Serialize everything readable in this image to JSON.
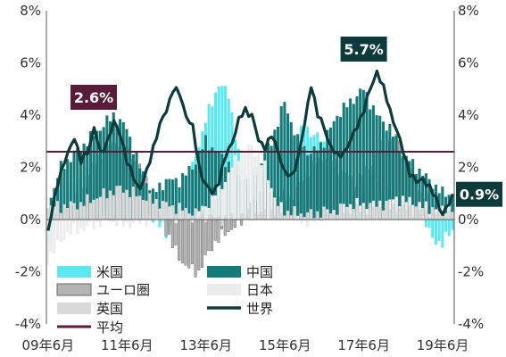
{
  "chart_data": {
    "type": "bar",
    "title": "",
    "xlabel": "",
    "ylabel": "",
    "ylim": [
      -4,
      8
    ],
    "y_ticks": [
      "8%",
      "6%",
      "4%",
      "2%",
      "0%",
      "-2%",
      "-4%"
    ],
    "x_ticks": [
      "09年6月",
      "11年6月",
      "13年6月",
      "15年6月",
      "17年6月",
      "19年6月"
    ],
    "x_range": [
      "2009-06",
      "2019-09"
    ],
    "grid": false,
    "legend_placement": "bottom-left",
    "average": {
      "name": "平均",
      "value": 2.6,
      "label": "2.6%",
      "color": "#5a1a3a"
    },
    "annotations": [
      {
        "text": "5.7%",
        "x": "2017-06",
        "y": 5.7,
        "color": "#0d3b3b"
      },
      {
        "text": "0.9%",
        "x": "2019-09",
        "y": 0.9,
        "color": "#0d3b3b"
      }
    ],
    "series": [
      {
        "name": "米国",
        "type": "bar",
        "color": "#5ce8f0",
        "keyframes": [
          [
            0,
            -1.6
          ],
          [
            4,
            1.2
          ],
          [
            10,
            1.5
          ],
          [
            14,
            2.4
          ],
          [
            18,
            2.8
          ],
          [
            22,
            2.5
          ],
          [
            26,
            1.2
          ],
          [
            30,
            0.3
          ],
          [
            36,
            -0.5
          ],
          [
            40,
            0.5
          ],
          [
            44,
            2.0
          ],
          [
            48,
            3.8
          ],
          [
            52,
            5.2
          ],
          [
            55,
            4.8
          ],
          [
            58,
            2.5
          ],
          [
            62,
            1.0
          ],
          [
            66,
            2.0
          ],
          [
            70,
            2.5
          ],
          [
            74,
            3.0
          ],
          [
            78,
            3.5
          ],
          [
            82,
            3.2
          ],
          [
            86,
            2.5
          ],
          [
            90,
            0.5
          ],
          [
            94,
            1.0
          ],
          [
            98,
            1.5
          ],
          [
            102,
            1.2
          ],
          [
            106,
            1.0
          ],
          [
            110,
            0.6
          ],
          [
            114,
            0.2
          ],
          [
            117,
            -0.8
          ],
          [
            120,
            -0.9
          ],
          [
            123,
            -0.4
          ]
        ]
      },
      {
        "name": "ユーロ圏",
        "type": "bar",
        "color": "#b4b4b4",
        "keyframes": [
          [
            0,
            0.2
          ],
          [
            4,
            0.5
          ],
          [
            10,
            0.8
          ],
          [
            14,
            2.0
          ],
          [
            18,
            2.8
          ],
          [
            22,
            3.0
          ],
          [
            26,
            2.5
          ],
          [
            30,
            1.5
          ],
          [
            34,
            0.2
          ],
          [
            38,
            -1.0
          ],
          [
            42,
            -1.8
          ],
          [
            46,
            -2.0
          ],
          [
            50,
            -1.0
          ],
          [
            54,
            -0.5
          ],
          [
            58,
            -0.2
          ],
          [
            62,
            0.5
          ],
          [
            66,
            1.2
          ],
          [
            70,
            1.0
          ],
          [
            74,
            0.8
          ],
          [
            78,
            1.5
          ],
          [
            82,
            2.2
          ],
          [
            86,
            2.5
          ],
          [
            90,
            1.8
          ],
          [
            94,
            1.5
          ],
          [
            98,
            2.0
          ],
          [
            102,
            2.8
          ],
          [
            106,
            3.2
          ],
          [
            110,
            2.0
          ],
          [
            114,
            1.0
          ],
          [
            118,
            0.5
          ],
          [
            123,
            0.3
          ]
        ]
      },
      {
        "name": "英国",
        "type": "bar",
        "color": "#d9d9d9",
        "keyframes": [
          [
            0,
            0.5
          ],
          [
            4,
            0.5
          ],
          [
            10,
            0.6
          ],
          [
            14,
            0.8
          ],
          [
            18,
            1.0
          ],
          [
            22,
            1.2
          ],
          [
            26,
            1.0
          ],
          [
            30,
            0.8
          ],
          [
            38,
            0.5
          ],
          [
            46,
            0.2
          ],
          [
            54,
            0.0
          ],
          [
            62,
            0.2
          ],
          [
            70,
            0.3
          ],
          [
            78,
            0.2
          ],
          [
            86,
            0.3
          ],
          [
            94,
            0.4
          ],
          [
            102,
            0.5
          ],
          [
            110,
            0.4
          ],
          [
            118,
            0.3
          ],
          [
            123,
            0.3
          ]
        ]
      },
      {
        "name": "中国",
        "type": "bar",
        "color": "#157a7a",
        "keyframes": [
          [
            0,
            0.5
          ],
          [
            4,
            2.0
          ],
          [
            8,
            2.5
          ],
          [
            12,
            3.0
          ],
          [
            16,
            3.5
          ],
          [
            20,
            4.0
          ],
          [
            24,
            3.5
          ],
          [
            28,
            2.0
          ],
          [
            32,
            1.0
          ],
          [
            36,
            1.5
          ],
          [
            40,
            1.5
          ],
          [
            44,
            2.0
          ],
          [
            48,
            3.0
          ],
          [
            52,
            2.5
          ],
          [
            56,
            2.0
          ],
          [
            60,
            1.5
          ],
          [
            64,
            2.0
          ],
          [
            68,
            3.0
          ],
          [
            72,
            4.5
          ],
          [
            76,
            3.0
          ],
          [
            80,
            2.5
          ],
          [
            84,
            3.0
          ],
          [
            88,
            4.0
          ],
          [
            92,
            4.5
          ],
          [
            96,
            5.0
          ],
          [
            100,
            4.0
          ],
          [
            104,
            3.5
          ],
          [
            108,
            2.5
          ],
          [
            112,
            2.0
          ],
          [
            116,
            1.5
          ],
          [
            120,
            1.0
          ],
          [
            123,
            1.0
          ]
        ]
      },
      {
        "name": "日本",
        "type": "bar",
        "color": "#ececec",
        "keyframes": [
          [
            0,
            -1.5
          ],
          [
            6,
            -0.5
          ],
          [
            12,
            -0.3
          ],
          [
            18,
            0.0
          ],
          [
            24,
            -0.2
          ],
          [
            30,
            0.0
          ],
          [
            36,
            0.1
          ],
          [
            42,
            0.0
          ],
          [
            48,
            0.5
          ],
          [
            54,
            1.5
          ],
          [
            58,
            2.5
          ],
          [
            62,
            2.8
          ],
          [
            66,
            2.0
          ],
          [
            70,
            0.5
          ],
          [
            74,
            0.2
          ],
          [
            78,
            -0.1
          ],
          [
            82,
            0.0
          ],
          [
            86,
            0.2
          ],
          [
            90,
            0.5
          ],
          [
            94,
            0.6
          ],
          [
            98,
            0.5
          ],
          [
            102,
            0.6
          ],
          [
            106,
            0.8
          ],
          [
            110,
            0.7
          ],
          [
            114,
            0.5
          ],
          [
            118,
            0.4
          ],
          [
            123,
            0.4
          ]
        ]
      },
      {
        "name": "世界",
        "type": "line",
        "color": "#0d3b3b",
        "keyframes": [
          [
            0,
            -0.5
          ],
          [
            3,
            1.5
          ],
          [
            6,
            2.5
          ],
          [
            8,
            3.2
          ],
          [
            10,
            2.2
          ],
          [
            12,
            2.6
          ],
          [
            14,
            3.5
          ],
          [
            16,
            2.5
          ],
          [
            18,
            3.0
          ],
          [
            20,
            3.7
          ],
          [
            22,
            3.3
          ],
          [
            24,
            2.2
          ],
          [
            26,
            1.6
          ],
          [
            28,
            1.2
          ],
          [
            30,
            1.8
          ],
          [
            32,
            2.8
          ],
          [
            34,
            3.6
          ],
          [
            36,
            4.2
          ],
          [
            38,
            5.0
          ],
          [
            40,
            4.8
          ],
          [
            42,
            4.0
          ],
          [
            44,
            3.5
          ],
          [
            46,
            2.0
          ],
          [
            48,
            1.3
          ],
          [
            50,
            1.0
          ],
          [
            52,
            1.5
          ],
          [
            54,
            2.4
          ],
          [
            56,
            3.0
          ],
          [
            58,
            3.8
          ],
          [
            60,
            4.2
          ],
          [
            62,
            4.0
          ],
          [
            64,
            3.0
          ],
          [
            66,
            2.8
          ],
          [
            68,
            3.2
          ],
          [
            70,
            2.6
          ],
          [
            72,
            1.8
          ],
          [
            74,
            1.6
          ],
          [
            76,
            2.4
          ],
          [
            78,
            3.6
          ],
          [
            80,
            5.2
          ],
          [
            82,
            4.0
          ],
          [
            84,
            3.5
          ],
          [
            86,
            2.8
          ],
          [
            88,
            2.4
          ],
          [
            90,
            2.6
          ],
          [
            92,
            3.0
          ],
          [
            94,
            3.6
          ],
          [
            96,
            4.2
          ],
          [
            98,
            5.0
          ],
          [
            100,
            5.7
          ],
          [
            102,
            5.0
          ],
          [
            104,
            4.2
          ],
          [
            106,
            3.4
          ],
          [
            108,
            2.6
          ],
          [
            110,
            1.8
          ],
          [
            112,
            1.4
          ],
          [
            114,
            1.6
          ],
          [
            116,
            1.2
          ],
          [
            118,
            0.8
          ],
          [
            120,
            0.2
          ],
          [
            122,
            0.6
          ],
          [
            123,
            0.9
          ]
        ]
      }
    ]
  }
}
